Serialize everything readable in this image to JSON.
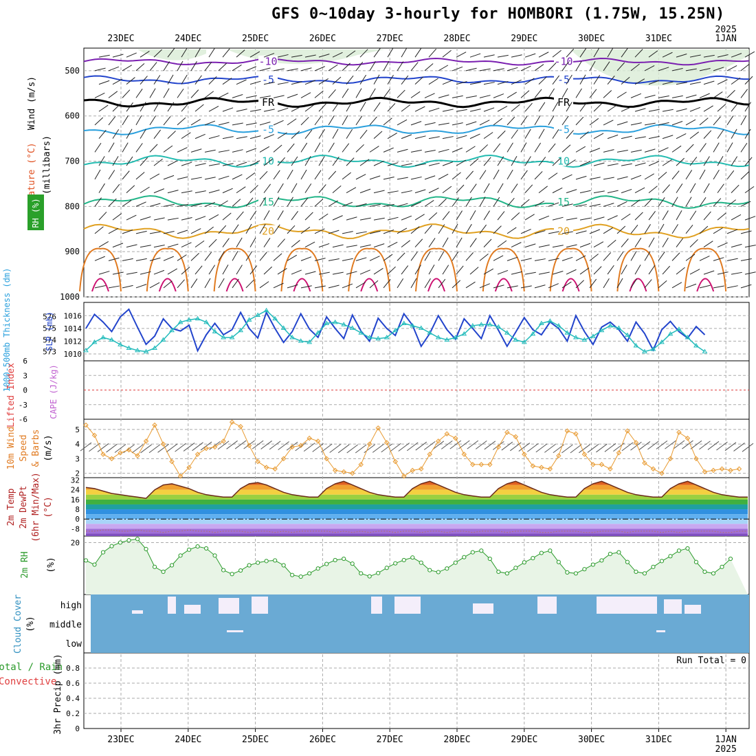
{
  "title": "GFS 0~10day 3-hourly for HOMBORI (1.75W, 15.25N)",
  "year_label": "2025",
  "day_labels": [
    "23DEC",
    "24DEC",
    "25DEC",
    "26DEC",
    "27DEC",
    "28DEC",
    "29DEC",
    "30DEC",
    "31DEC",
    "1JAN"
  ],
  "colors": {
    "grid": "#aaaaaa",
    "cloud_bg": "#6aaad4",
    "cloud_gap": "#f4eefa",
    "rh_fill": "#e8f4e6",
    "rh_line": "#2a9a2a",
    "wind_line": "#e89a30",
    "slp_line": "#2244cc",
    "thick_line": "#22bbbb",
    "li_zero": "#e04040"
  },
  "chart_data": [
    {
      "type": "line",
      "panel": "upper-air",
      "ylabel": [
        "Wind (m/s)",
        "Temperature (°C)",
        "RH (%)",
        "(millibars)"
      ],
      "yticks": [
        500,
        600,
        700,
        800,
        900,
        1000
      ],
      "ylim": [
        1000,
        450
      ],
      "isotherm_labels": [
        "-10",
        "-5",
        "FR",
        "-5",
        "10",
        "15",
        "20"
      ],
      "grid": true
    },
    {
      "type": "line",
      "panel": "thickness-slp",
      "ylabel_left": "1000-500mb Thickness (dm)",
      "ylabel_right": "SLP (mb)",
      "thickness_ticks": [
        573,
        574,
        575,
        576
      ],
      "slp_ticks": [
        1010,
        1012,
        1014,
        1016
      ],
      "series": [
        {
          "name": "SLP (mb)",
          "values": [
            1014.0,
            1016.2,
            1015.0,
            1013.5,
            1015.8,
            1017.0,
            1014.2,
            1011.5,
            1012.8,
            1015.5,
            1014.0,
            1013.6,
            1014.5,
            1010.5,
            1013.0,
            1014.8,
            1013.0,
            1013.8,
            1016.5,
            1014.0,
            1012.5,
            1016.5,
            1014.0,
            1011.8,
            1013.5,
            1016.3,
            1013.9,
            1012.6,
            1015.8,
            1014.0,
            1012.4,
            1016.1,
            1013.6,
            1012.0,
            1015.6,
            1014.0,
            1012.9,
            1016.3,
            1014.5,
            1011.2,
            1013.2,
            1016.0,
            1013.8,
            1012.3,
            1015.5,
            1014.0,
            1012.4,
            1016.0,
            1013.7,
            1011.2,
            1013.4,
            1015.7,
            1013.8,
            1013.0,
            1015.0,
            1014.0,
            1012.0,
            1016.0,
            1013.5,
            1011.5,
            1014.2,
            1015.0,
            1013.8,
            1012.0,
            1015.0,
            1013.2,
            1010.6,
            1013.8,
            1015.1,
            1013.5,
            1012.5,
            1014.3,
            1013.0
          ]
        },
        {
          "name": "1000-500mb Thickness (dm)",
          "values": [
            573.1,
            573.8,
            574.2,
            574.0,
            573.6,
            573.3,
            573.1,
            573.0,
            573.3,
            574.0,
            574.8,
            575.5,
            575.7,
            575.8,
            575.5,
            574.7,
            574.2,
            574.2,
            574.8,
            575.7,
            576.1,
            576.5,
            575.8,
            575.0,
            574.2,
            573.9,
            573.8,
            574.6,
            575.4,
            575.5,
            575.3,
            575.0,
            574.6,
            574.2,
            574.1,
            574.2,
            574.8,
            575.4,
            575.2,
            575.0,
            574.6,
            574.2,
            574.0,
            574.2,
            574.5,
            575.2,
            575.3,
            575.3,
            575.1,
            574.6,
            574.0,
            573.8,
            574.5,
            575.4,
            575.6,
            575.2,
            574.6,
            574.2,
            574.0,
            574.3,
            574.8,
            575.2,
            575.0,
            574.4,
            573.5,
            573.0,
            573.2,
            573.8,
            574.5,
            574.9,
            574.2,
            573.5,
            573.0
          ]
        }
      ]
    },
    {
      "type": "line",
      "panel": "lifted-index-cape",
      "ylabel_left": "Lifted Index",
      "ylabel_right": "CAPE (J/kg)",
      "yticks": [
        6,
        3,
        0,
        -3,
        -6
      ],
      "ylim": [
        6,
        -6
      ],
      "zero_line": 0
    },
    {
      "type": "line",
      "panel": "10m-wind",
      "ylabel": [
        "10m Wind",
        "Speed",
        "& Barbs",
        "(m/s)"
      ],
      "yticks": [
        2,
        3,
        4,
        5
      ],
      "ylim": [
        1.7,
        5.7
      ],
      "series": [
        {
          "name": "10m Wind Speed (m/s)",
          "values": [
            5.3,
            4.6,
            3.3,
            3.0,
            3.4,
            3.6,
            3.2,
            4.2,
            5.3,
            4.0,
            2.8,
            1.8,
            2.4,
            3.3,
            3.7,
            3.8,
            4.2,
            5.5,
            5.2,
            3.9,
            2.8,
            2.4,
            2.3,
            3.0,
            3.8,
            3.9,
            4.4,
            4.2,
            3.0,
            2.2,
            2.1,
            2.0,
            2.6,
            4.0,
            5.1,
            4.1,
            2.8,
            1.8,
            2.2,
            2.3,
            3.3,
            4.2,
            4.7,
            4.4,
            3.3,
            2.6,
            2.6,
            2.6,
            3.8,
            4.8,
            4.5,
            3.3,
            2.5,
            2.4,
            2.3,
            3.2,
            4.9,
            4.7,
            3.3,
            2.6,
            2.6,
            2.3,
            3.4,
            4.9,
            4.1,
            2.7,
            2.3,
            2.0,
            3.0,
            4.8,
            4.4,
            3.0,
            2.1,
            2.2,
            2.3,
            2.2,
            2.3
          ]
        }
      ]
    },
    {
      "type": "area",
      "panel": "2m-temp",
      "ylabel": [
        "2m Temp",
        "2m DewPt",
        "(6hr Min/Max)",
        "(°C)"
      ],
      "yticks": [
        32,
        24,
        16,
        8,
        0,
        -8
      ],
      "ylim": [
        -14,
        34
      ],
      "series": [
        {
          "name": "2m Temp (°C)",
          "values": [
            26,
            25,
            23,
            21,
            20,
            19,
            18,
            17,
            24,
            28,
            29,
            27,
            25,
            22,
            20,
            19,
            18,
            18,
            25,
            29,
            30,
            28,
            25,
            22,
            20,
            19,
            18,
            18,
            25,
            29,
            31,
            28,
            25,
            22,
            20,
            19,
            18,
            18,
            25,
            29,
            31,
            28,
            25,
            22,
            20,
            19,
            18,
            18,
            25,
            29,
            31,
            28,
            25,
            22,
            20,
            19,
            18,
            18,
            25,
            29,
            31,
            28,
            25,
            22,
            20,
            19,
            18,
            18,
            25,
            29,
            31,
            28,
            25,
            22,
            20,
            19,
            18,
            18
          ]
        },
        {
          "name": "2m DewPt (°C)",
          "values": [
            -10,
            -10,
            -9,
            -9,
            -10,
            -10,
            -9,
            -10,
            -10,
            -11,
            -10,
            -10,
            -9,
            -10,
            -10,
            -11,
            -10,
            -10,
            -10,
            -11,
            -10,
            -10,
            -11,
            -10,
            -11,
            -10,
            -10,
            -10,
            -10,
            -11,
            -10,
            -11,
            -10,
            -11,
            -10,
            -10,
            -11,
            -10,
            -10,
            -11,
            -10,
            -10,
            -11,
            -10,
            -10,
            -11,
            -10,
            -10,
            -10,
            -11,
            -10,
            -10,
            -10,
            -11,
            -11,
            -10,
            -10,
            -10,
            -11,
            -11,
            -10,
            -10,
            -10,
            -11,
            -10,
            -10,
            -10,
            -11,
            -10,
            -11,
            -10,
            -10,
            -10,
            -10,
            -11,
            -11,
            -10,
            -10
          ]
        }
      ]
    },
    {
      "type": "area",
      "panel": "2m-rh",
      "ylabel": [
        "2m RH",
        "(%)"
      ],
      "yticks": [
        20
      ],
      "ylim": [
        4,
        22
      ],
      "series": [
        {
          "name": "2m RH (%)",
          "values": [
            14.5,
            13.2,
            17,
            18.9,
            20,
            20.7,
            21.1,
            18,
            12.5,
            11,
            13,
            16,
            17.8,
            18.8,
            18.2,
            16,
            11.5,
            10.3,
            11.4,
            13,
            13.8,
            14.3,
            14.5,
            13,
            10,
            9.5,
            10.5,
            12,
            13.4,
            14.6,
            15,
            13.5,
            10.5,
            9.6,
            10.6,
            12.2,
            13.6,
            14.6,
            15.4,
            13.8,
            11.5,
            10.9,
            12,
            13.8,
            15.5,
            17,
            17.5,
            15,
            11,
            10.5,
            12.2,
            13.9,
            15.2,
            16.8,
            17.5,
            14,
            10.8,
            10.5,
            11.8,
            13.2,
            14.5,
            16.5,
            17,
            14,
            11,
            10.5,
            12.5,
            14.3,
            15.8,
            17.5,
            18.2,
            14,
            11,
            10.5,
            12.5,
            15
          ]
        }
      ]
    },
    {
      "type": "heatmap",
      "panel": "cloud-cover",
      "ylabel": [
        "Cloud Cover",
        "(%)"
      ],
      "yticks": [
        "high",
        "middle",
        "low"
      ]
    },
    {
      "type": "bar",
      "panel": "precip",
      "ylabel_left": [
        "Total / Rain",
        "Convective"
      ],
      "ylabel": [
        "3hr Precip (mm)"
      ],
      "yticks": [
        0,
        0.2,
        0.4,
        0.6,
        0.8
      ],
      "ylim": [
        0,
        1
      ],
      "annotation": "Run Total = 0",
      "values": []
    }
  ]
}
